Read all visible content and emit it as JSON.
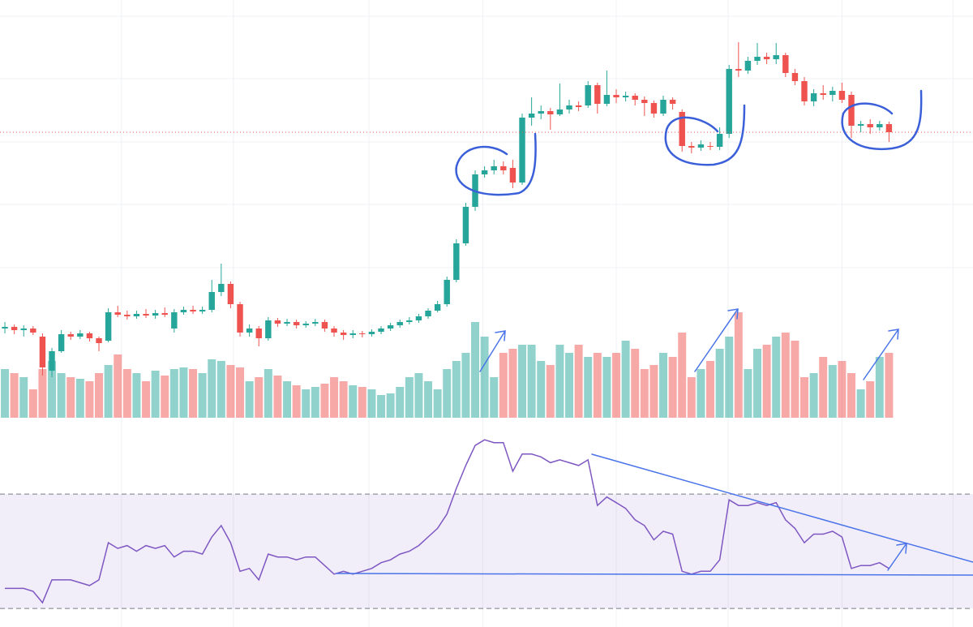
{
  "chart_data": {
    "type": "candlestick",
    "open": [
      110,
      112,
      108,
      110,
      100,
      58,
      82,
      103,
      100,
      104,
      98,
      95,
      130,
      127,
      125,
      128,
      126,
      129,
      110,
      130,
      133,
      131,
      133,
      155,
      165,
      140,
      105,
      110,
      98,
      120,
      116,
      118,
      114,
      116,
      118,
      110,
      105,
      102,
      104,
      103,
      106,
      110,
      114,
      118,
      120,
      125,
      132,
      140,
      170,
      215,
      260,
      300,
      305,
      310,
      308,
      290,
      370,
      375,
      378,
      374,
      380,
      385,
      385,
      410,
      387,
      398,
      395,
      397,
      392,
      388,
      375,
      392,
      377,
      335,
      333,
      335,
      334,
      350,
      430,
      428,
      440,
      445,
      442,
      447,
      425,
      415,
      390,
      400,
      398,
      403,
      398,
      360,
      362,
      358,
      362
    ],
    "high": [
      118,
      115,
      114,
      113,
      104,
      86,
      108,
      106,
      108,
      106,
      100,
      135,
      138,
      132,
      132,
      134,
      133,
      136,
      134,
      137,
      138,
      137,
      170,
      190,
      168,
      143,
      115,
      113,
      124,
      123,
      122,
      121,
      119,
      122,
      121,
      113,
      108,
      108,
      107,
      109,
      113,
      117,
      121,
      124,
      128,
      135,
      144,
      174,
      220,
      265,
      305,
      310,
      318,
      316,
      318,
      375,
      395,
      385,
      382,
      412,
      392,
      390,
      415,
      413,
      428,
      405,
      402,
      400,
      396,
      391,
      397,
      395,
      380,
      340,
      342,
      340,
      358,
      435,
      463,
      445,
      462,
      450,
      462,
      450,
      430,
      420,
      405,
      410,
      408,
      413,
      402,
      366,
      368,
      366,
      365
    ],
    "low": [
      104,
      103,
      100,
      102,
      52,
      50,
      80,
      96,
      97,
      94,
      82,
      93,
      124,
      121,
      122,
      123,
      122,
      124,
      105,
      127,
      128,
      128,
      130,
      150,
      135,
      100,
      100,
      88,
      95,
      112,
      113,
      110,
      111,
      113,
      106,
      100,
      96,
      98,
      99,
      100,
      103,
      107,
      111,
      115,
      117,
      122,
      130,
      137,
      167,
      212,
      255,
      296,
      300,
      300,
      283,
      287,
      360,
      368,
      355,
      372,
      375,
      378,
      382,
      375,
      384,
      388,
      390,
      385,
      372,
      370,
      372,
      380,
      328,
      326,
      329,
      330,
      330,
      345,
      420,
      424,
      435,
      436,
      436,
      420,
      410,
      385,
      384,
      392,
      390,
      388,
      345,
      352,
      350,
      354,
      340
    ],
    "close": [
      112,
      108,
      110,
      105,
      62,
      82,
      103,
      100,
      104,
      98,
      92,
      130,
      127,
      125,
      128,
      126,
      129,
      127,
      130,
      133,
      131,
      133,
      155,
      165,
      140,
      105,
      110,
      98,
      120,
      116,
      118,
      114,
      116,
      118,
      110,
      105,
      102,
      104,
      103,
      106,
      110,
      114,
      118,
      120,
      125,
      132,
      140,
      170,
      215,
      260,
      300,
      305,
      310,
      305,
      290,
      370,
      375,
      378,
      374,
      380,
      385,
      383,
      410,
      387,
      398,
      395,
      397,
      392,
      388,
      375,
      392,
      387,
      335,
      333,
      337,
      334,
      350,
      430,
      428,
      440,
      445,
      442,
      447,
      425,
      415,
      390,
      400,
      398,
      403,
      392,
      360,
      362,
      358,
      362,
      352
    ],
    "volume": [
      60,
      55,
      50,
      35,
      60,
      70,
      55,
      50,
      48,
      45,
      55,
      65,
      78,
      60,
      55,
      45,
      58,
      52,
      60,
      62,
      60,
      55,
      72,
      70,
      65,
      62,
      45,
      50,
      60,
      52,
      45,
      40,
      35,
      38,
      42,
      50,
      45,
      40,
      38,
      35,
      28,
      30,
      38,
      50,
      55,
      45,
      35,
      60,
      70,
      80,
      118,
      100,
      50,
      80,
      85,
      90,
      90,
      70,
      65,
      90,
      80,
      90,
      75,
      80,
      75,
      80,
      95,
      85,
      60,
      65,
      80,
      75,
      105,
      50,
      60,
      70,
      85,
      100,
      130,
      60,
      85,
      90,
      100,
      105,
      95,
      50,
      55,
      75,
      65,
      70,
      55,
      35,
      45,
      75,
      80
    ],
    "rsi": [
      37,
      37,
      37,
      36,
      32,
      40,
      40,
      40,
      39,
      38,
      40,
      53,
      51,
      52,
      50,
      52,
      51,
      52,
      48,
      50,
      50,
      49,
      55,
      59,
      53,
      43,
      44,
      40,
      49,
      48,
      48,
      47,
      48,
      48,
      45,
      42,
      43,
      42,
      43,
      44,
      46,
      47,
      49,
      50,
      52,
      55,
      58,
      63,
      72,
      80,
      87,
      89,
      88,
      88,
      78,
      84,
      84,
      83,
      81,
      82,
      81,
      80,
      82,
      66,
      69,
      67,
      65,
      61,
      59,
      54,
      57,
      56,
      43,
      42,
      43,
      43,
      47,
      68,
      66,
      66,
      67,
      66,
      67,
      61,
      58,
      53,
      56,
      56,
      57,
      55,
      44,
      45,
      45,
      46,
      44
    ],
    "up_color": "#26a69a",
    "down_color": "#ef5350",
    "rsi_color": "#7e57c2",
    "xlim": [
      -0.52,
      102.93
    ],
    "xticks": [
      12.4,
      24.3,
      38.7,
      50.8,
      65,
      76.9,
      89,
      100.8
    ],
    "ylim": [
      0,
      515
    ],
    "yticks": [
      185,
      263,
      340,
      418,
      495
    ],
    "rsi_ylim": [
      23.5,
      95.3
    ],
    "rsi_yticks": [
      30,
      70
    ],
    "grid": true,
    "price_line": true
  }
}
